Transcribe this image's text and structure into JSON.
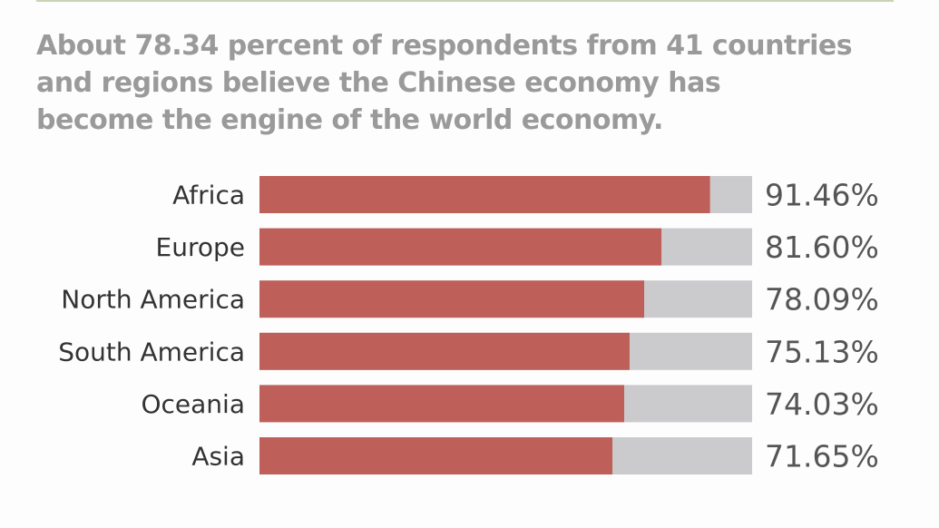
{
  "headline": {
    "lines": [
      "About 78.34 percent of respondents from 41 countries",
      "and regions believe the Chinese economy has",
      "become the engine of the world economy."
    ]
  },
  "colors": {
    "bar_fill": "#bf5f5a",
    "bar_track": "#cbcbcd",
    "headline": "#9a9a9a",
    "rule": "#c9d3b6"
  },
  "chart_data": {
    "type": "bar",
    "orientation": "horizontal",
    "title": "",
    "xlabel": "",
    "ylabel": "",
    "xlim": [
      0,
      100
    ],
    "grid": false,
    "categories": [
      "Africa",
      "Europe",
      "North America",
      "South America",
      "Oceania",
      "Asia"
    ],
    "values": [
      91.46,
      81.6,
      78.09,
      75.13,
      74.03,
      71.65
    ],
    "value_labels": [
      "91.46%",
      "81.60%",
      "78.09%",
      "75.13%",
      "74.03%",
      "71.65%"
    ]
  }
}
